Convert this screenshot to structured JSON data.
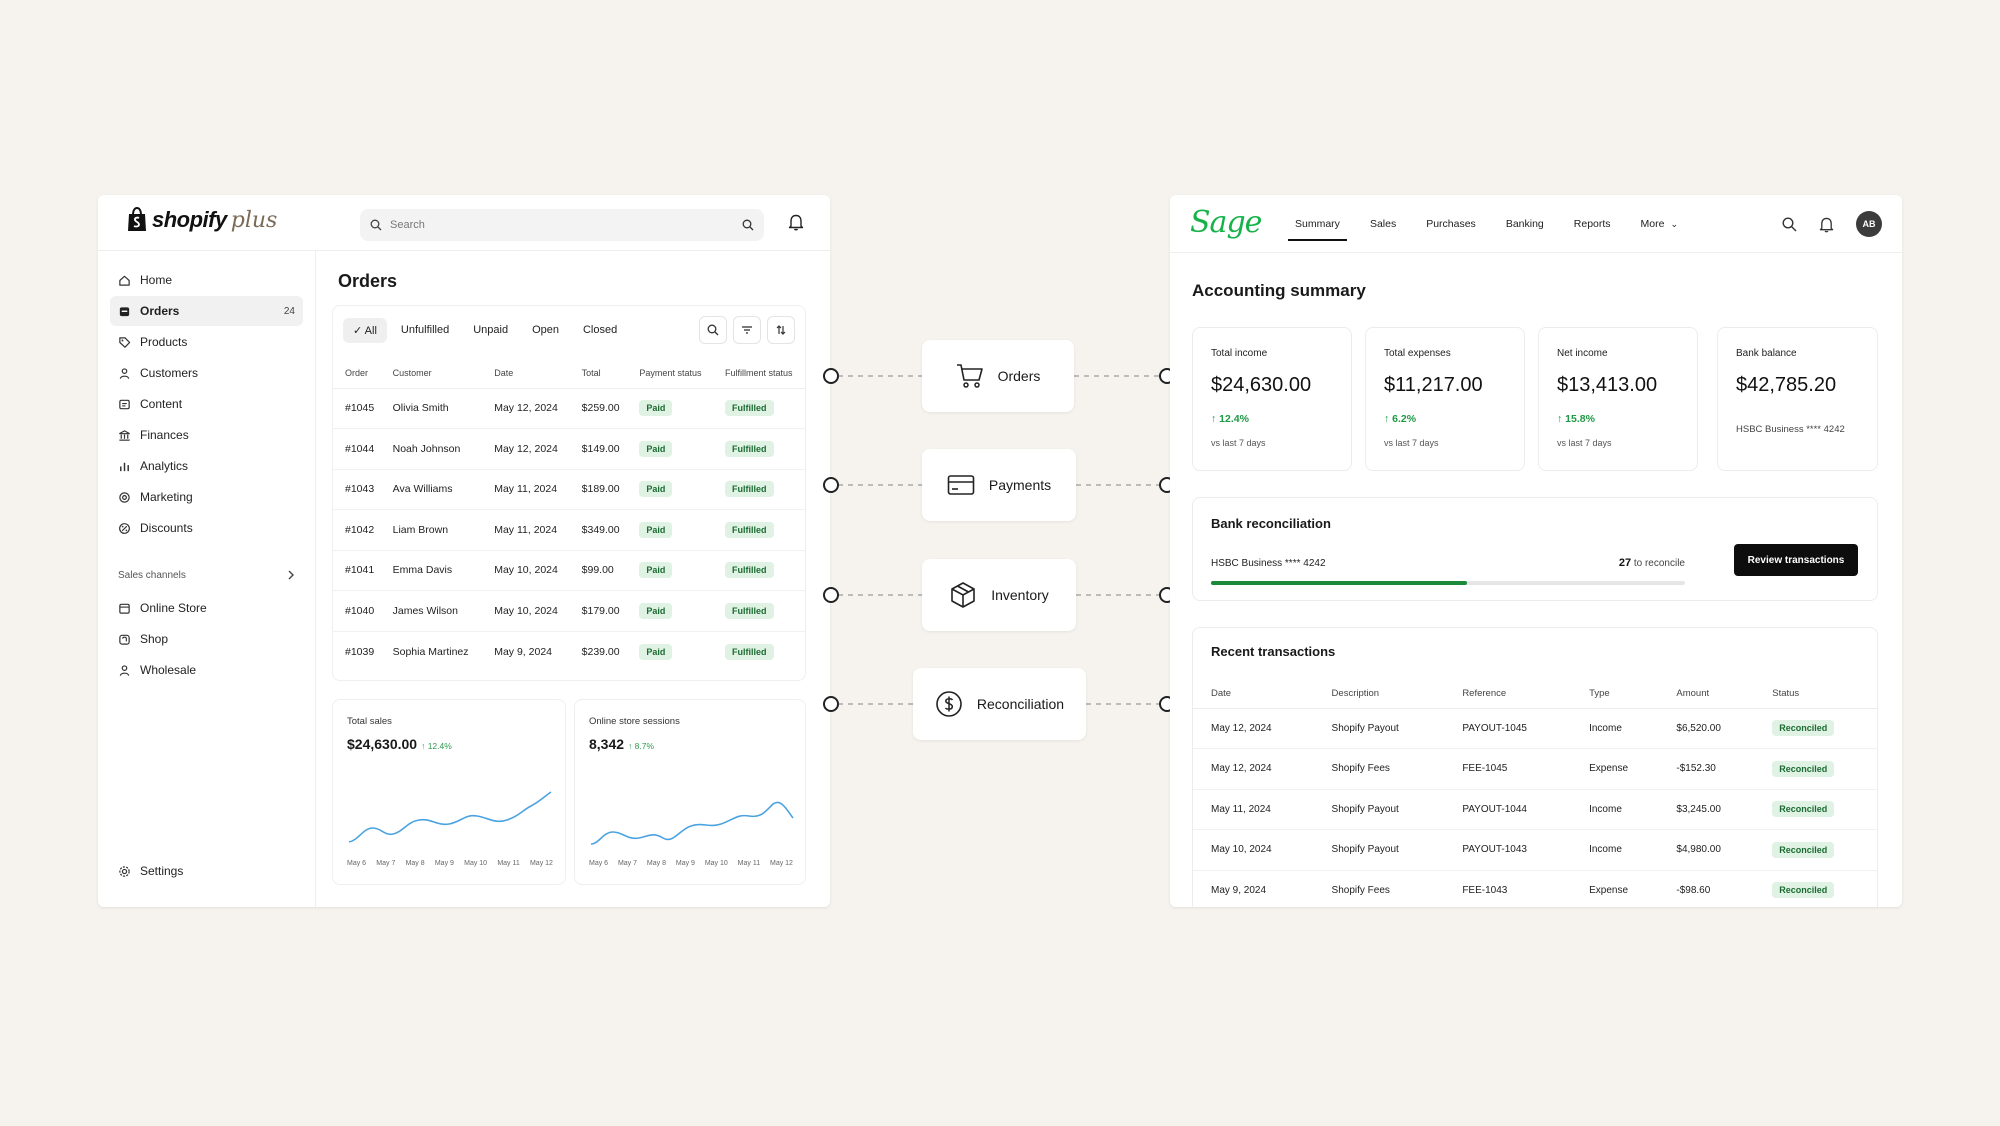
{
  "colors": {
    "background": "#f6f3ef",
    "sage_green": "#17b34a",
    "paid_pill": "#dff2e3",
    "paid_text": "#1c6b32",
    "positive": "#1f9a45",
    "chart_line": "#4aa3e0"
  },
  "shopify": {
    "logo_text": "shopify",
    "logo_plus": "plus",
    "search_placeholder": "Search",
    "nav": [
      {
        "label": "Home",
        "icon": "home-icon"
      },
      {
        "label": "Orders",
        "icon": "orders-icon",
        "count": "24"
      },
      {
        "label": "Products",
        "icon": "tag-icon"
      },
      {
        "label": "Customers",
        "icon": "person-icon"
      },
      {
        "label": "Content",
        "icon": "content-icon"
      },
      {
        "label": "Finances",
        "icon": "bank-icon"
      },
      {
        "label": "Analytics",
        "icon": "bar-chart-icon"
      },
      {
        "label": "Marketing",
        "icon": "target-icon"
      },
      {
        "label": "Discounts",
        "icon": "discount-icon"
      }
    ],
    "sales_channels_label": "Sales channels",
    "channels": [
      {
        "label": "Online Store",
        "icon": "store-icon"
      },
      {
        "label": "Shop",
        "icon": "shop-icon"
      },
      {
        "label": "Wholesale",
        "icon": "person-icon"
      }
    ],
    "settings_label": "Settings",
    "orders_title": "Orders",
    "tabs": [
      "All",
      "Unfulfilled",
      "Unpaid",
      "Open",
      "Closed"
    ],
    "columns": [
      "Order",
      "Customer",
      "Date",
      "Total",
      "Payment status",
      "Fulfillment status"
    ],
    "orders": [
      {
        "order": "#1045",
        "customer": "Olivia Smith",
        "date": "May 12, 2024",
        "total": "$259.00",
        "payment": "Paid",
        "fulfillment": "Fulfilled"
      },
      {
        "order": "#1044",
        "customer": "Noah Johnson",
        "date": "May 12, 2024",
        "total": "$149.00",
        "payment": "Paid",
        "fulfillment": "Fulfilled"
      },
      {
        "order": "#1043",
        "customer": "Ava Williams",
        "date": "May 11, 2024",
        "total": "$189.00",
        "payment": "Paid",
        "fulfillment": "Fulfilled"
      },
      {
        "order": "#1042",
        "customer": "Liam Brown",
        "date": "May 11, 2024",
        "total": "$349.00",
        "payment": "Paid",
        "fulfillment": "Fulfilled"
      },
      {
        "order": "#1041",
        "customer": "Emma Davis",
        "date": "May 10, 2024",
        "total": "$99.00",
        "payment": "Paid",
        "fulfillment": "Fulfilled"
      },
      {
        "order": "#1040",
        "customer": "James Wilson",
        "date": "May 10, 2024",
        "total": "$179.00",
        "payment": "Paid",
        "fulfillment": "Fulfilled"
      },
      {
        "order": "#1039",
        "customer": "Sophia Martinez",
        "date": "May 9, 2024",
        "total": "$239.00",
        "payment": "Paid",
        "fulfillment": "Fulfilled"
      }
    ],
    "total_sales": {
      "label": "Total sales",
      "value": "$24,630.00",
      "delta": "↑ 12.4%"
    },
    "sessions": {
      "label": "Online store sessions",
      "value": "8,342",
      "delta": "↑ 8.7%"
    },
    "chart_days": [
      "May 6",
      "May 7",
      "May 8",
      "May 9",
      "May 10",
      "May 11",
      "May 12"
    ]
  },
  "connectors": [
    {
      "label": "Orders",
      "icon": "cart-icon"
    },
    {
      "label": "Payments",
      "icon": "credit-card-icon"
    },
    {
      "label": "Inventory",
      "icon": "box-icon"
    },
    {
      "label": "Reconciliation",
      "icon": "dollar-circle-icon"
    }
  ],
  "sage": {
    "logo": "Sage",
    "nav": [
      "Summary",
      "Sales",
      "Purchases",
      "Banking",
      "Reports",
      "More"
    ],
    "avatar": "AB",
    "title": "Accounting summary",
    "kpis": [
      {
        "label": "Total income",
        "value": "$24,630.00",
        "delta": "↑ 12.4%",
        "sub": "vs last 7 days"
      },
      {
        "label": "Total expenses",
        "value": "$11,217.00",
        "delta": "↑ 6.2%",
        "sub": "vs last 7 days"
      },
      {
        "label": "Net income",
        "value": "$13,413.00",
        "delta": "↑ 15.8%",
        "sub": "vs last 7 days"
      },
      {
        "label": "Bank balance",
        "value": "$42,785.20",
        "sub": "HSBC Business **** 4242"
      }
    ],
    "reconciliation": {
      "title": "Bank reconciliation",
      "account": "HSBC Business **** 4242",
      "count": "27",
      "count_suffix": "to reconcile",
      "progress": 0.54,
      "button": "Review transactions"
    },
    "recent": {
      "title": "Recent transactions",
      "columns": [
        "Date",
        "Description",
        "Reference",
        "Type",
        "Amount",
        "Status"
      ],
      "rows": [
        {
          "date": "May 12, 2024",
          "desc": "Shopify Payout",
          "ref": "PAYOUT-1045",
          "type": "Income",
          "amount": "$6,520.00",
          "status": "Reconciled"
        },
        {
          "date": "May 12, 2024",
          "desc": "Shopify Fees",
          "ref": "FEE-1045",
          "type": "Expense",
          "amount": "-$152.30",
          "status": "Reconciled"
        },
        {
          "date": "May 11, 2024",
          "desc": "Shopify Payout",
          "ref": "PAYOUT-1044",
          "type": "Income",
          "amount": "$3,245.00",
          "status": "Reconciled"
        },
        {
          "date": "May 10, 2024",
          "desc": "Shopify Payout",
          "ref": "PAYOUT-1043",
          "type": "Income",
          "amount": "$4,980.00",
          "status": "Reconciled"
        },
        {
          "date": "May 9, 2024",
          "desc": "Shopify Fees",
          "ref": "FEE-1043",
          "type": "Expense",
          "amount": "-$98.60",
          "status": "Reconciled"
        }
      ]
    }
  }
}
